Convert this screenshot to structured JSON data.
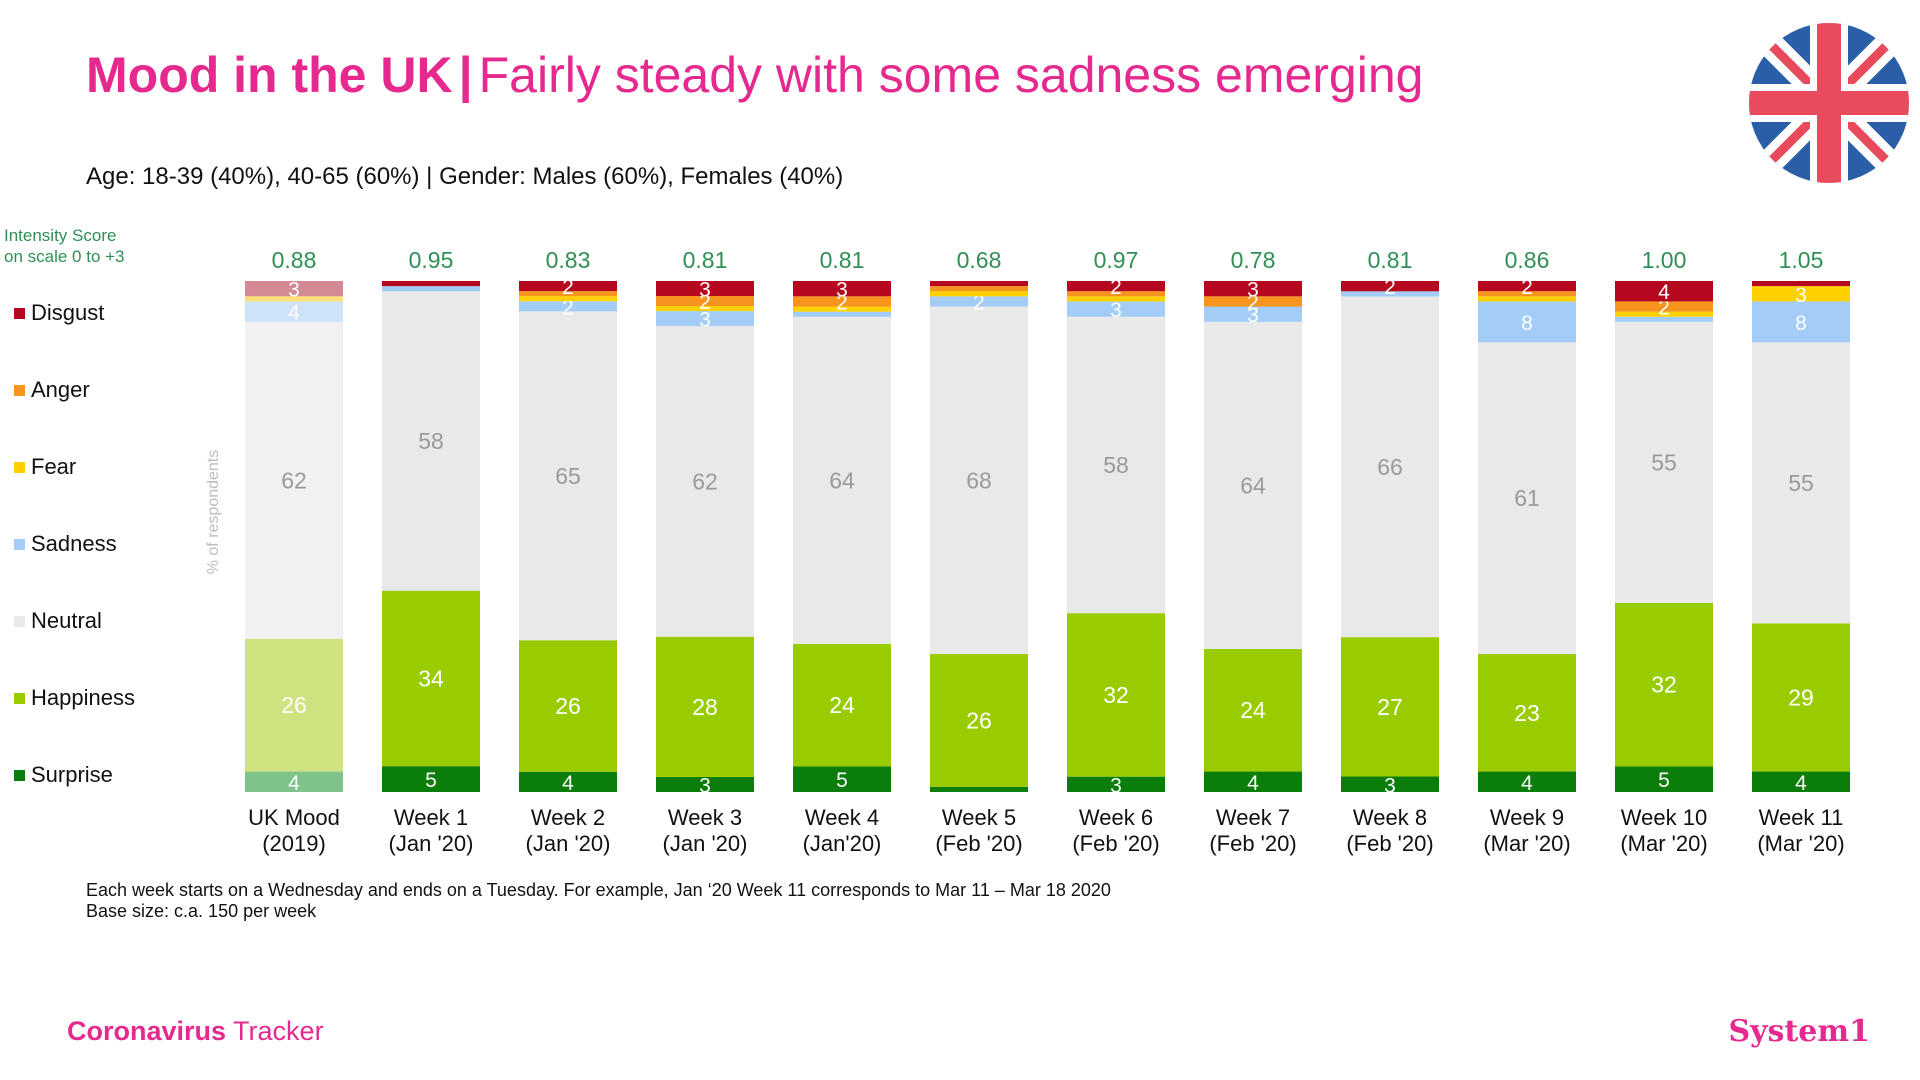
{
  "title": {
    "bold": "Mood in the UK",
    "separator": "|",
    "rest": "Fairly steady with some sadness emerging"
  },
  "subtitle": "Age: 18-39 (40%), 40-65 (60%) | Gender: Males (60%), Females (40%)",
  "intensity_note": {
    "line1": "Intensity Score",
    "line2": "on scale 0 to +3"
  },
  "footnote": {
    "line1": "Each week starts on a Wednesday and ends on a Tuesday. For example, Jan ‘20 Week 11 corresponds to Mar 11 – Mar 18 2020",
    "line2": "Base size: c.a. 150 per week"
  },
  "brand_left": {
    "bold": "Coronavirus",
    "rest": " Tracker"
  },
  "brand_right": "System1",
  "colors": {
    "Disgust": "#b5081e",
    "Anger": "#f7941d",
    "Fear": "#ffd000",
    "Sadness": "#a3cdf7",
    "Neutral": "#e9e9e9",
    "Happiness": "#99cc00",
    "Surprise": "#0a7d0a",
    "intensity": "#2f8f55",
    "brand": "#e5298f"
  },
  "chart_data": {
    "type": "bar",
    "stacked": true,
    "ylabel": "% of respondents",
    "ylim": [
      0,
      100
    ],
    "categories": [
      [
        "UK Mood",
        "(2019)"
      ],
      [
        "Week 1",
        "(Jan '20)"
      ],
      [
        "Week 2",
        "(Jan '20)"
      ],
      [
        "Week 3",
        "(Jan '20)"
      ],
      [
        "Week 4",
        "(Jan'20)"
      ],
      [
        "Week 5",
        "(Feb '20)"
      ],
      [
        "Week 6",
        "(Feb '20)"
      ],
      [
        "Week 7",
        "(Feb '20)"
      ],
      [
        "Week 8",
        "(Feb '20)"
      ],
      [
        "Week 9",
        "(Mar '20)"
      ],
      [
        "Week 10",
        "(Mar '20)"
      ],
      [
        "Week 11",
        "(Mar '20)"
      ]
    ],
    "intensity_scores": [
      "0.88",
      "0.95",
      "0.83",
      "0.81",
      "0.81",
      "0.68",
      "0.97",
      "0.78",
      "0.81",
      "0.86",
      "1.00",
      "1.05"
    ],
    "series": [
      {
        "name": "Surprise",
        "values": [
          4,
          5,
          4,
          3,
          5,
          1,
          3,
          4,
          3,
          4,
          5,
          4
        ]
      },
      {
        "name": "Happiness",
        "values": [
          26,
          34,
          26,
          28,
          24,
          26,
          32,
          24,
          27,
          23,
          32,
          29
        ]
      },
      {
        "name": "Neutral",
        "values": [
          62,
          58,
          65,
          62,
          64,
          68,
          58,
          64,
          66,
          61,
          55,
          55
        ]
      },
      {
        "name": "Sadness",
        "values": [
          4,
          1,
          2,
          3,
          1,
          2,
          3,
          3,
          1,
          8,
          1,
          8
        ]
      },
      {
        "name": "Fear",
        "values": [
          1,
          0,
          1,
          1,
          1,
          1,
          1,
          0,
          0,
          1,
          1,
          3
        ]
      },
      {
        "name": "Anger",
        "values": [
          0,
          0,
          1,
          2,
          2,
          1,
          1,
          2,
          0,
          1,
          2,
          0
        ]
      },
      {
        "name": "Disgust",
        "values": [
          3,
          1,
          2,
          3,
          3,
          1,
          2,
          3,
          2,
          2,
          4,
          1
        ]
      }
    ],
    "legend": [
      "Disgust",
      "Anger",
      "Fear",
      "Sadness",
      "Neutral",
      "Happiness",
      "Surprise"
    ]
  }
}
